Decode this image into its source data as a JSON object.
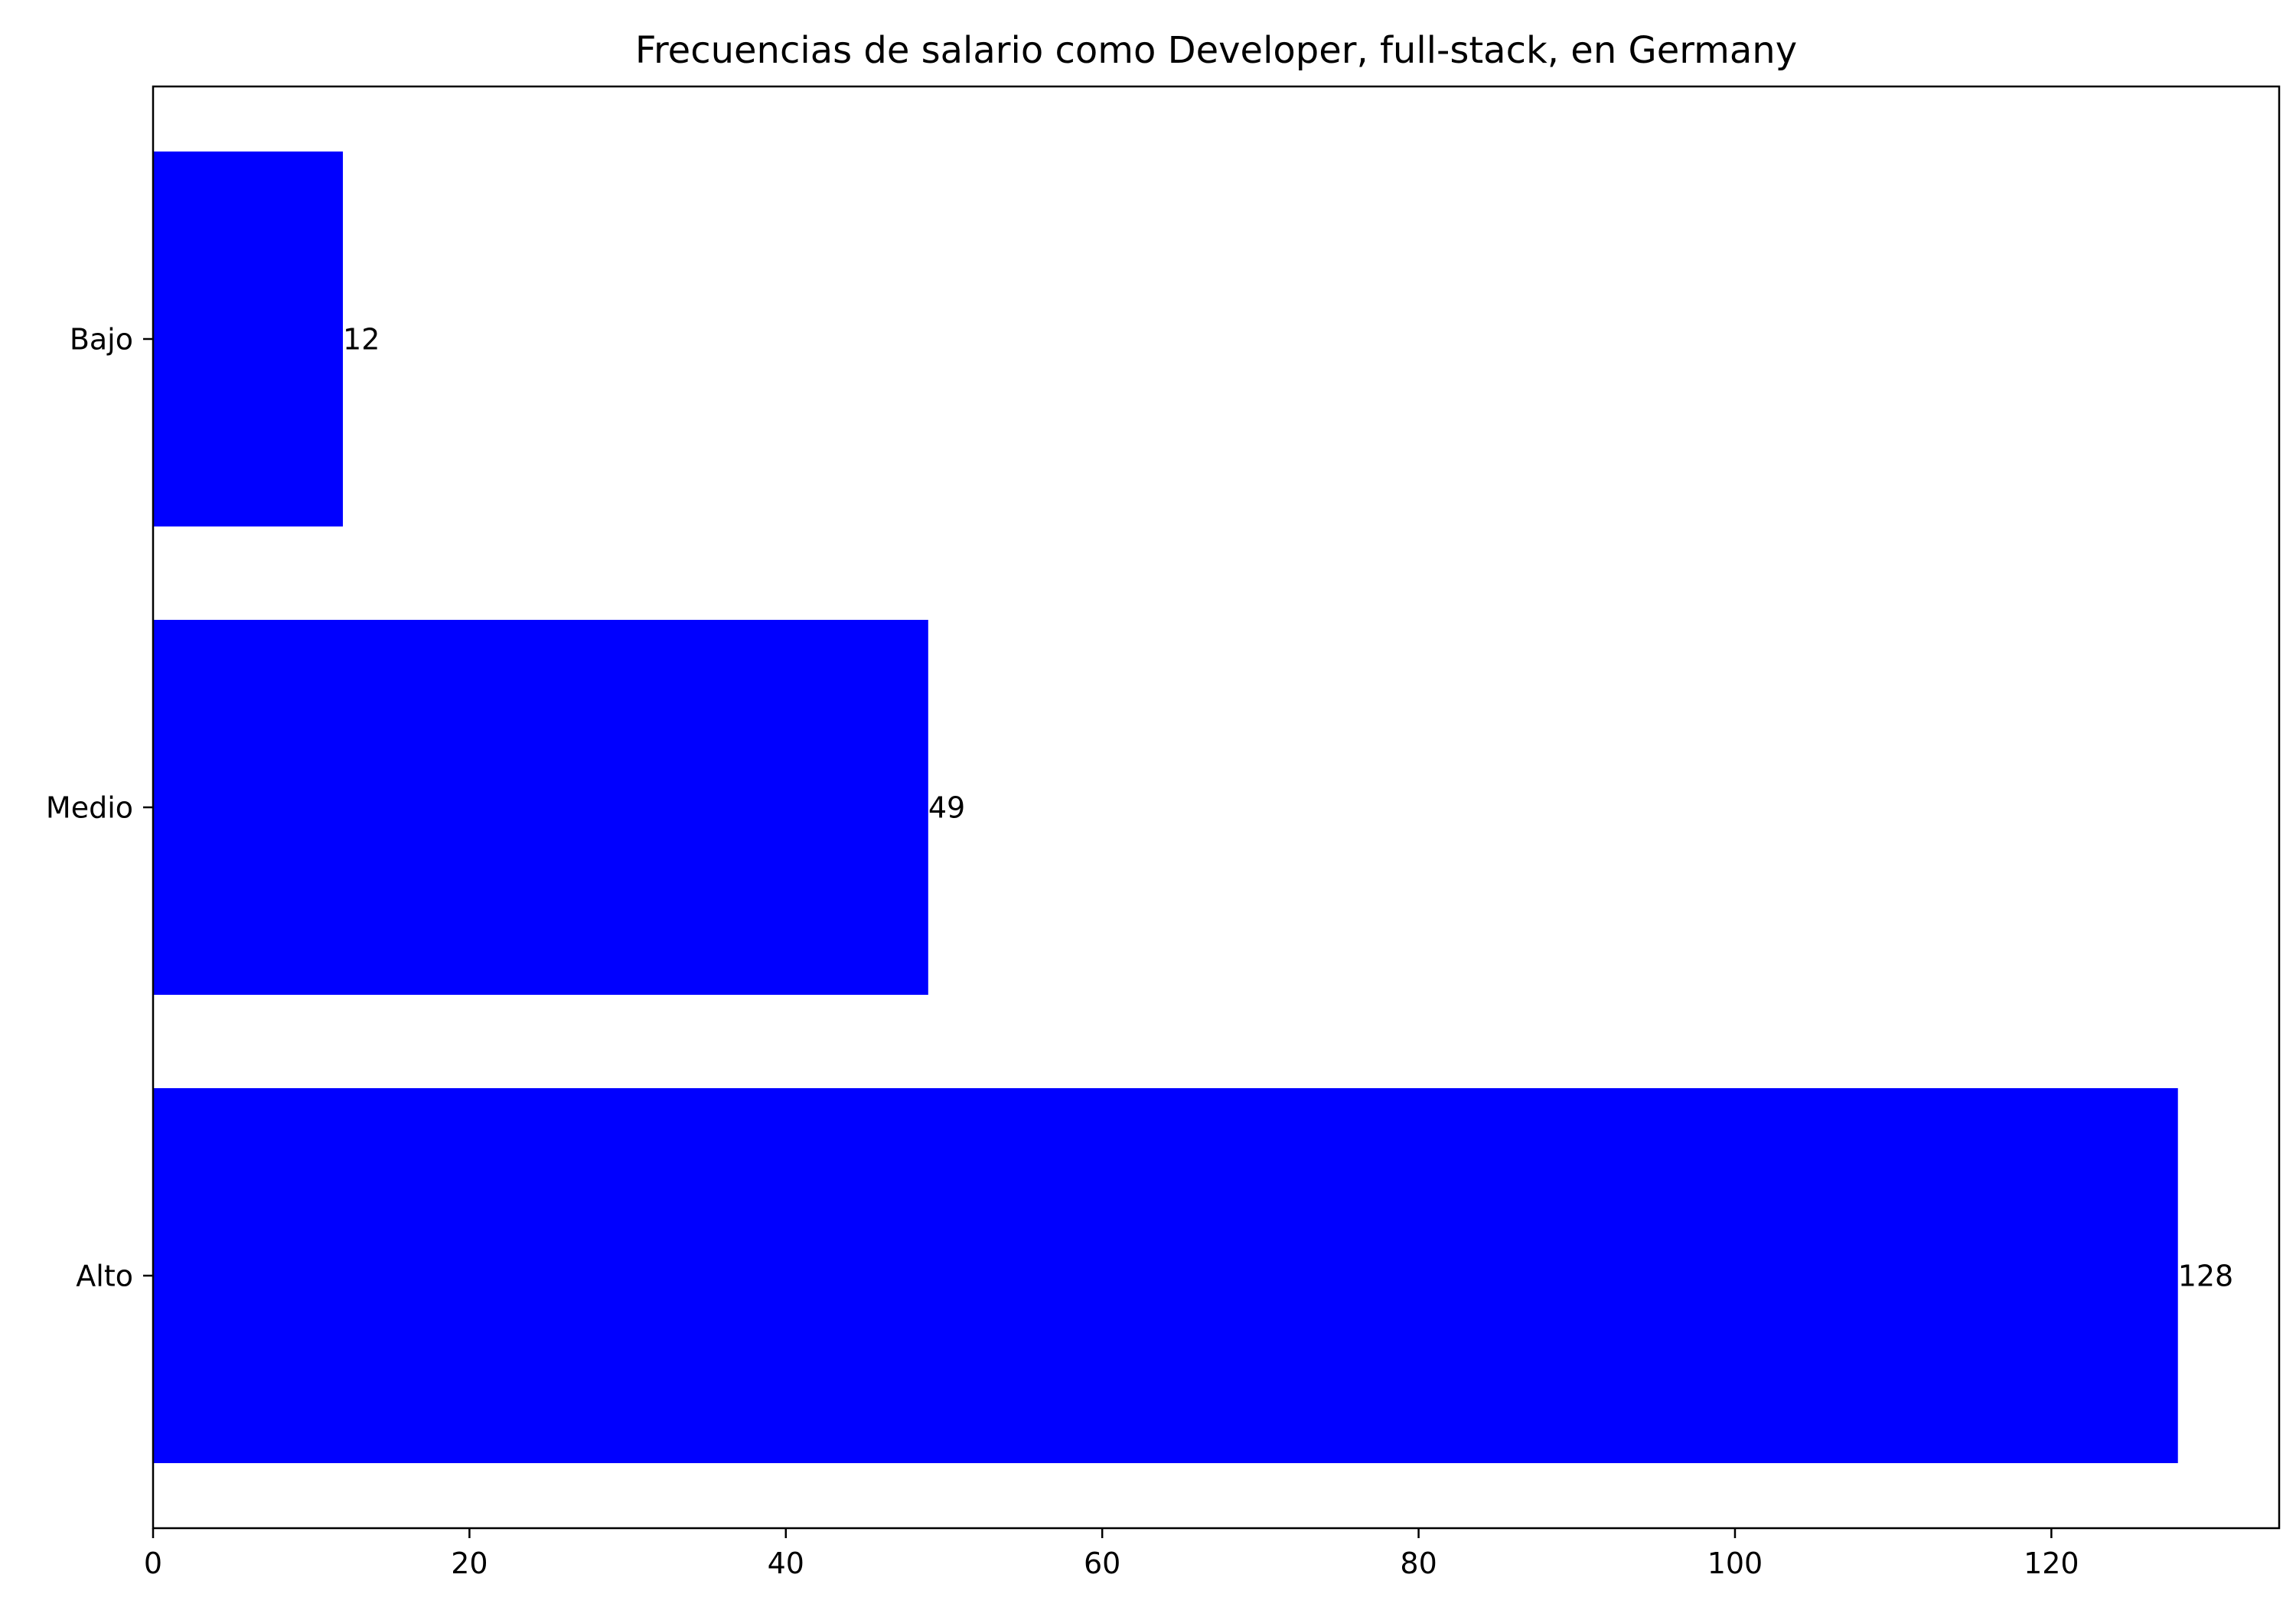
{
  "chart_data": {
    "type": "bar",
    "orientation": "horizontal",
    "title": "Frecuencias de salario como Developer, full-stack, en Germany",
    "xlabel": "",
    "ylabel": "",
    "categories": [
      "Alto",
      "Medio",
      "Bajo"
    ],
    "values": [
      128,
      49,
      12
    ],
    "data_labels": [
      "128",
      "49",
      "12"
    ],
    "xlim": [
      0,
      134.4
    ],
    "x_ticks": [
      0,
      20,
      40,
      60,
      80,
      100,
      120
    ],
    "x_tick_labels": [
      "0",
      "20",
      "40",
      "60",
      "80",
      "100",
      "120"
    ],
    "bar_color": "#0000ff",
    "grid": false,
    "legend": "none"
  }
}
